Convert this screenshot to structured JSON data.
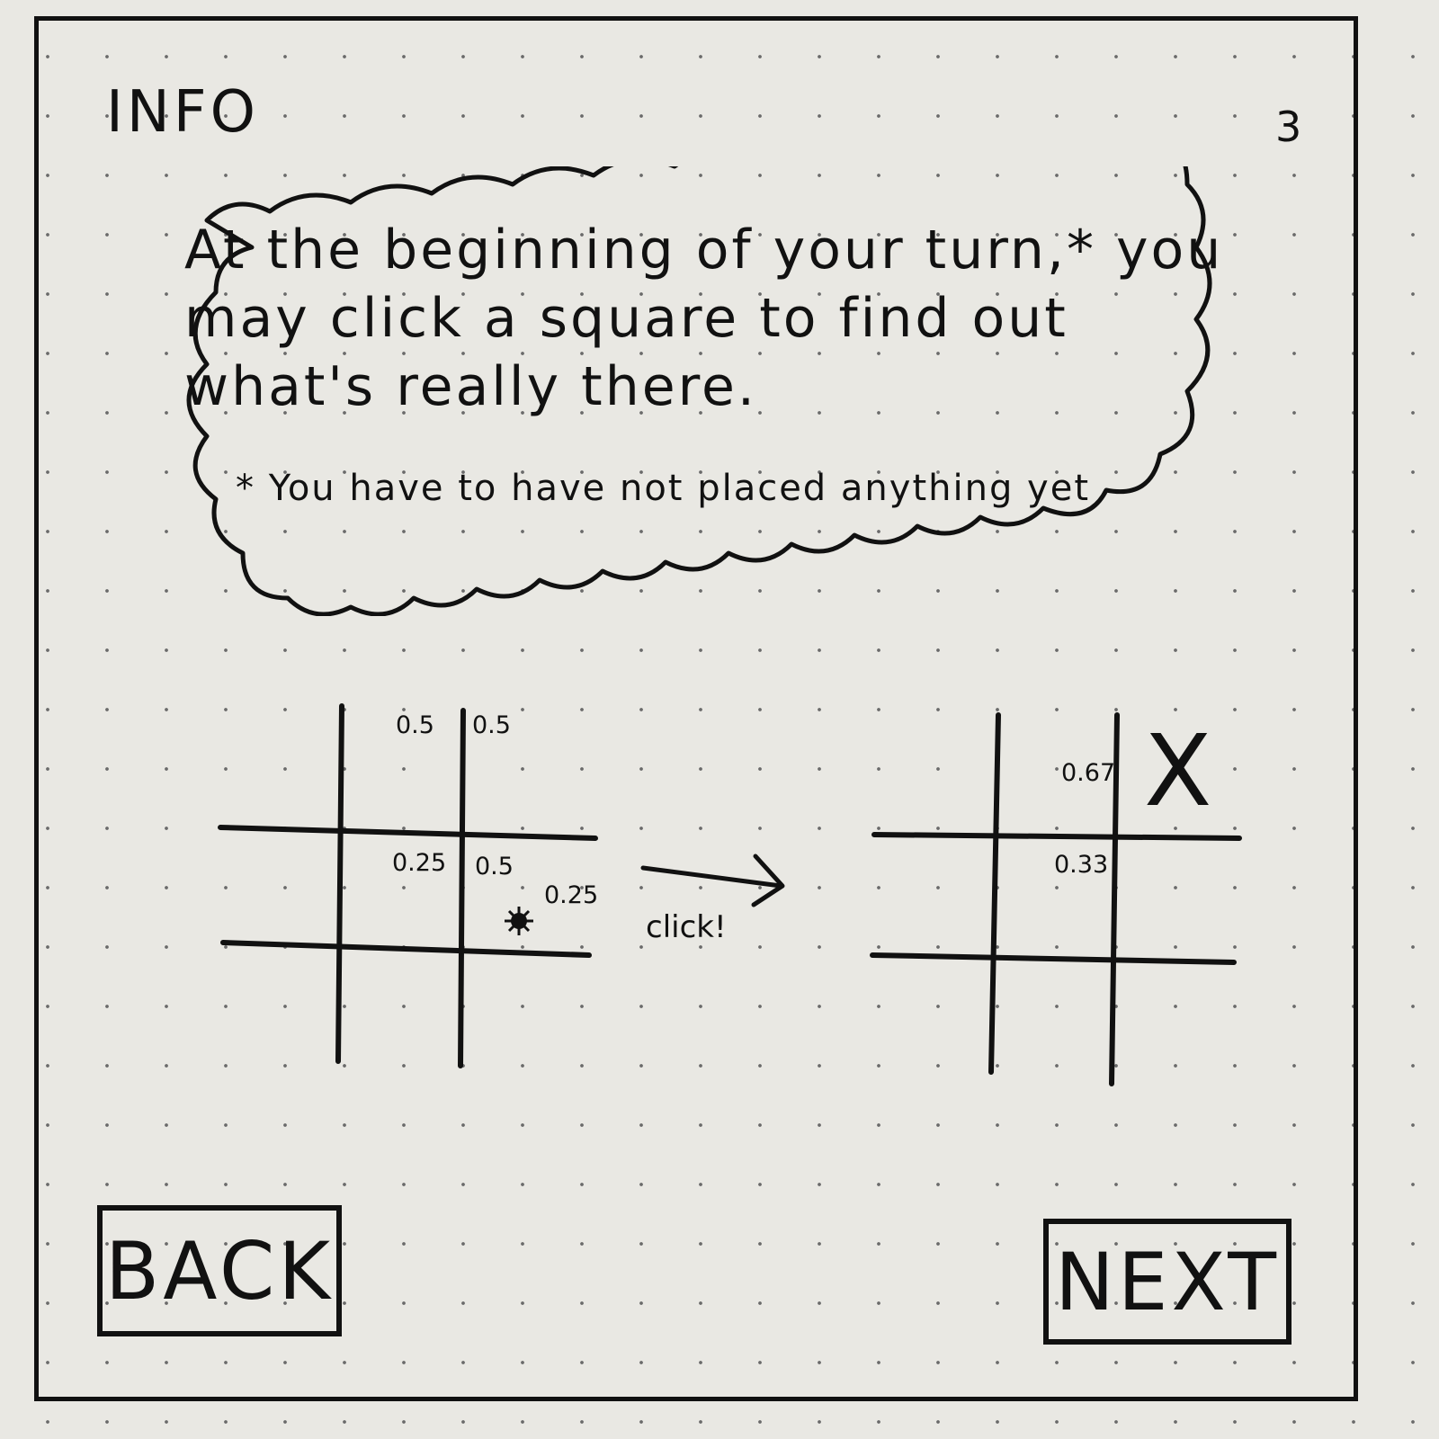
{
  "header": {
    "title": "INFO",
    "page_number": "3"
  },
  "message": {
    "text": "At the beginning of your turn,* you may click a square to find out what's really there.",
    "footnote": "* You have to have not placed anything yet"
  },
  "example": {
    "before_board": {
      "labels": {
        "top_middle": "0.5",
        "top_right": "0.5",
        "center_middle": "0.25",
        "center_right": "0.5",
        "center_right_lower": "0.25"
      },
      "click_marker_icon": "click-burst-icon"
    },
    "arrow_label": "click!",
    "arrow_icon": "arrow-right-icon",
    "after_board": {
      "labels": {
        "top_middle": "0.67",
        "center_middle": "0.33"
      },
      "revealed_mark": "X"
    }
  },
  "navigation": {
    "back_label": "BACK",
    "next_label": "NEXT"
  }
}
